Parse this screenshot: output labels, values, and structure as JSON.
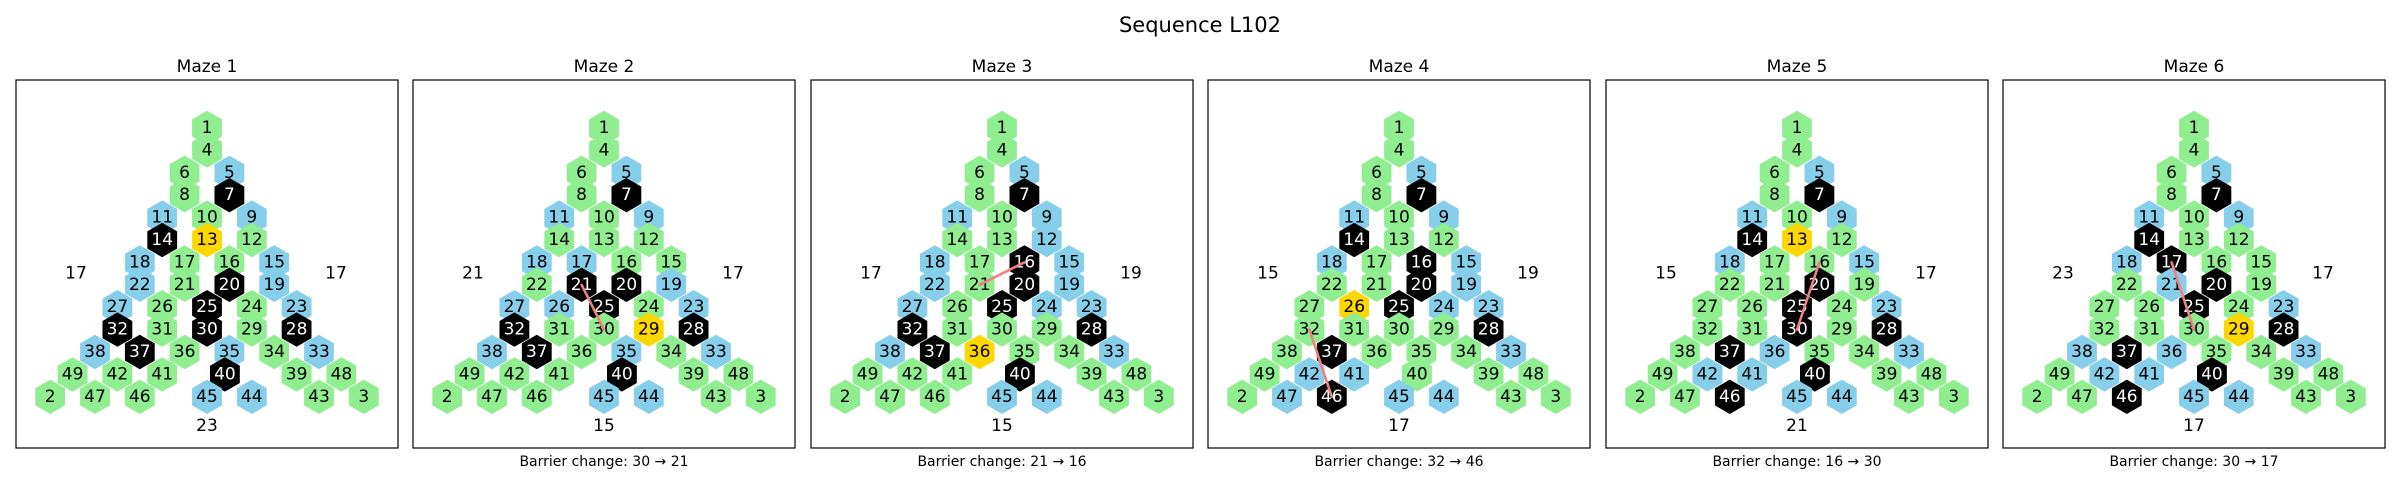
{
  "title": "Sequence L102",
  "colors": {
    "green": "#90EE90",
    "blue": "#87CEEB",
    "black": "#000000",
    "gold": "#FFD700",
    "barrier": "#F08080",
    "frame": "#000000"
  },
  "grid_layout": {
    "rows": [
      [
        1
      ],
      [
        4
      ],
      [
        6,
        5
      ],
      [
        8,
        7
      ],
      [
        11,
        10,
        9
      ],
      [
        14,
        13,
        12
      ],
      [
        18,
        17,
        16,
        15
      ],
      [
        22,
        21,
        20,
        19
      ],
      [
        27,
        26,
        25,
        24,
        23
      ],
      [
        32,
        31,
        30,
        29,
        28
      ],
      [
        38,
        37,
        36,
        35,
        34,
        33
      ],
      [
        49,
        42,
        41,
        40,
        39,
        48
      ],
      [
        2,
        47,
        46,
        45,
        44,
        43,
        3
      ]
    ]
  },
  "mazes": [
    {
      "title": "Maze 1",
      "side_left": "17",
      "side_right": "17",
      "bottom": "23",
      "caption": "",
      "black": [
        7,
        14,
        20,
        25,
        28,
        30,
        32,
        37,
        40
      ],
      "blue": [
        5,
        9,
        11,
        15,
        18,
        19,
        22,
        23,
        27,
        33,
        35,
        38,
        44,
        45
      ],
      "gold": [
        13
      ],
      "barrier": []
    },
    {
      "title": "Maze 2",
      "side_left": "21",
      "side_right": "17",
      "bottom": "15",
      "caption": "Barrier change: 30 → 21",
      "black": [
        7,
        20,
        21,
        25,
        28,
        32,
        37,
        40
      ],
      "blue": [
        5,
        9,
        11,
        17,
        18,
        19,
        23,
        26,
        27,
        33,
        35,
        38,
        44,
        45
      ],
      "gold": [
        29
      ],
      "barrier": [
        [
          21,
          30
        ]
      ]
    },
    {
      "title": "Maze 3",
      "side_left": "17",
      "side_right": "19",
      "bottom": "15",
      "caption": "Barrier change: 21 → 16",
      "black": [
        7,
        16,
        20,
        25,
        28,
        32,
        37,
        40
      ],
      "blue": [
        5,
        9,
        11,
        12,
        15,
        18,
        19,
        22,
        23,
        24,
        27,
        33,
        38,
        44,
        45
      ],
      "gold": [
        36
      ],
      "barrier": [
        [
          21,
          16
        ]
      ]
    },
    {
      "title": "Maze 4",
      "side_left": "15",
      "side_right": "19",
      "bottom": "17",
      "caption": "Barrier change: 32 → 46",
      "black": [
        7,
        14,
        16,
        20,
        25,
        28,
        37,
        46
      ],
      "blue": [
        5,
        9,
        11,
        15,
        18,
        19,
        23,
        24,
        33,
        41,
        42,
        44,
        45,
        47
      ],
      "gold": [
        26
      ],
      "barrier": [
        [
          32,
          46
        ]
      ]
    },
    {
      "title": "Maze 5",
      "side_left": "15",
      "side_right": "17",
      "bottom": "21",
      "caption": "Barrier change: 16 → 30",
      "black": [
        7,
        14,
        20,
        25,
        28,
        30,
        37,
        40,
        46
      ],
      "blue": [
        5,
        9,
        11,
        15,
        18,
        23,
        33,
        36,
        41,
        42,
        44,
        45
      ],
      "gold": [
        13
      ],
      "barrier": [
        [
          16,
          30
        ]
      ]
    },
    {
      "title": "Maze 6",
      "side_left": "23",
      "side_right": "17",
      "bottom": "17",
      "caption": "Barrier change: 30 → 17",
      "black": [
        7,
        14,
        17,
        20,
        25,
        28,
        37,
        40,
        46
      ],
      "blue": [
        5,
        9,
        11,
        18,
        21,
        23,
        33,
        36,
        38,
        41,
        42,
        44,
        45
      ],
      "gold": [
        29
      ],
      "barrier": [
        [
          30,
          17
        ]
      ]
    }
  ]
}
